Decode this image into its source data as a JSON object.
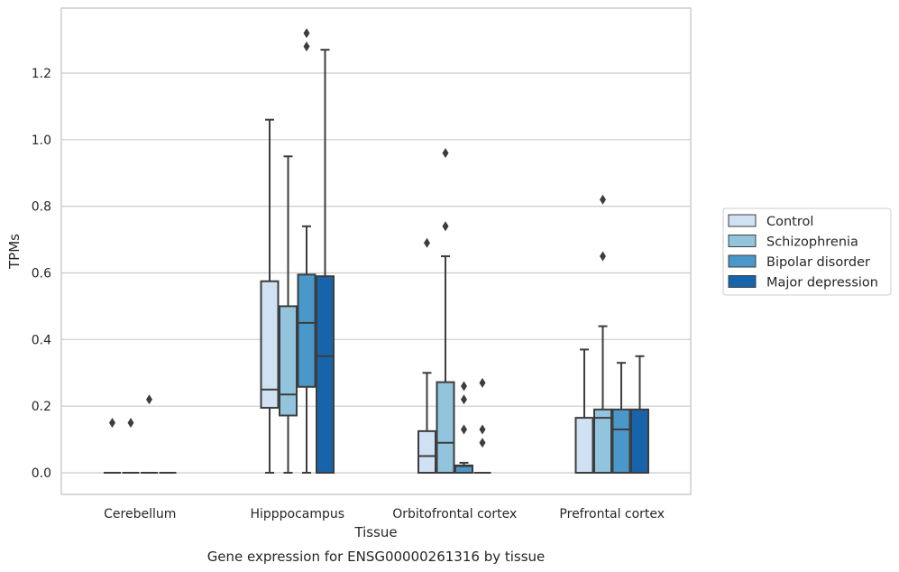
{
  "chart_data": {
    "type": "boxplot",
    "title": "",
    "caption": "Gene expression for ENSG00000261316 by tissue",
    "xlabel": "Tissue",
    "ylabel": "TPMs",
    "ylim": [
      -0.065,
      1.395
    ],
    "yticks": [
      0.0,
      0.2,
      0.4,
      0.6,
      0.8,
      1.0,
      1.2
    ],
    "ytick_labels": [
      "0.0",
      "0.2",
      "0.4",
      "0.6",
      "0.8",
      "1.0",
      "1.2"
    ],
    "grid": "horizontal",
    "legend_position": "right",
    "categories": [
      "Cerebellum",
      "Hipppocampus",
      "Orbitofrontal cortex",
      "Prefrontal cortex"
    ],
    "series": [
      {
        "name": "Control",
        "color": "#cfe1f2",
        "boxes": [
          {
            "min": 0,
            "q1": 0,
            "median": 0,
            "q3": 0,
            "max": 0,
            "outliers": [
              0.15
            ]
          },
          {
            "min": 0,
            "q1": 0.195,
            "median": 0.25,
            "q3": 0.575,
            "max": 1.06,
            "outliers": []
          },
          {
            "min": 0,
            "q1": 0,
            "median": 0.05,
            "q3": 0.125,
            "max": 0.3,
            "outliers": [
              0.69
            ]
          },
          {
            "min": 0,
            "q1": 0,
            "median": 0,
            "q3": 0.165,
            "max": 0.37,
            "outliers": []
          }
        ]
      },
      {
        "name": "Schizophrenia",
        "color": "#93c4de",
        "boxes": [
          {
            "min": 0,
            "q1": 0,
            "median": 0,
            "q3": 0,
            "max": 0,
            "outliers": [
              0.15
            ]
          },
          {
            "min": 0,
            "q1": 0.172,
            "median": 0.235,
            "q3": 0.5,
            "max": 0.95,
            "outliers": []
          },
          {
            "min": 0,
            "q1": 0,
            "median": 0.09,
            "q3": 0.272,
            "max": 0.65,
            "outliers": [
              0.74,
              0.96
            ]
          },
          {
            "min": 0,
            "q1": 0,
            "median": 0.165,
            "q3": 0.19,
            "max": 0.44,
            "outliers": [
              0.65,
              0.82
            ]
          }
        ]
      },
      {
        "name": "Bipolar disorder",
        "color": "#4a98c9",
        "boxes": [
          {
            "min": 0,
            "q1": 0,
            "median": 0,
            "q3": 0,
            "max": 0,
            "outliers": [
              0.22
            ]
          },
          {
            "min": 0,
            "q1": 0.258,
            "median": 0.45,
            "q3": 0.595,
            "max": 0.74,
            "outliers": [
              1.28,
              1.32
            ]
          },
          {
            "min": 0,
            "q1": 0,
            "median": 0.02,
            "q3": 0.022,
            "max": 0.03,
            "outliers": [
              0.13,
              0.22,
              0.26
            ]
          },
          {
            "min": 0,
            "q1": 0,
            "median": 0.13,
            "q3": 0.19,
            "max": 0.33,
            "outliers": []
          }
        ]
      },
      {
        "name": "Major depression",
        "color": "#1764ab",
        "boxes": [
          {
            "min": 0,
            "q1": 0,
            "median": 0,
            "q3": 0,
            "max": 0,
            "outliers": []
          },
          {
            "min": 0,
            "q1": 0,
            "median": 0.35,
            "q3": 0.59,
            "max": 1.27,
            "outliers": []
          },
          {
            "min": 0,
            "q1": 0,
            "median": 0,
            "q3": 0,
            "max": 0,
            "outliers": [
              0.09,
              0.13,
              0.27
            ]
          },
          {
            "min": 0,
            "q1": 0,
            "median": 0,
            "q3": 0.19,
            "max": 0.35,
            "outliers": []
          }
        ]
      }
    ]
  }
}
